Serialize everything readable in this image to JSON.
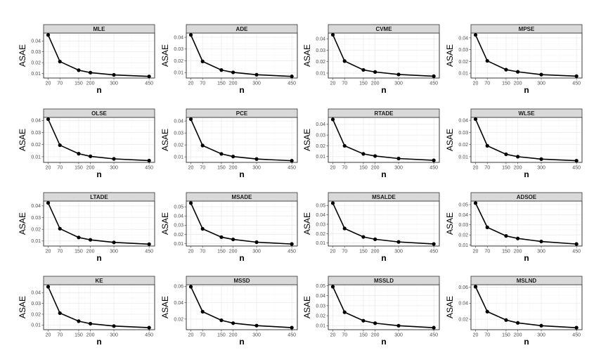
{
  "chart_data": [
    {
      "type": "line",
      "title": "MLE",
      "xlabel": "n",
      "ylabel": "ASAE",
      "x": [
        20,
        70,
        150,
        200,
        300,
        450
      ],
      "y": [
        0.0455,
        0.021,
        0.013,
        0.0108,
        0.0087,
        0.0073
      ],
      "yticks": [
        0.01,
        0.02,
        0.03,
        0.04
      ],
      "ylim": [
        0.0058,
        0.0473
      ]
    },
    {
      "type": "line",
      "title": "ADE",
      "xlabel": "n",
      "ylabel": "ASAE",
      "x": [
        20,
        70,
        150,
        200,
        300,
        450
      ],
      "y": [
        0.042,
        0.0195,
        0.0122,
        0.0102,
        0.0082,
        0.0068
      ],
      "yticks": [
        0.01,
        0.02,
        0.03,
        0.04
      ],
      "ylim": [
        0.0054,
        0.0436
      ]
    },
    {
      "type": "line",
      "title": "CVME",
      "xlabel": "n",
      "ylabel": "ASAE",
      "x": [
        20,
        70,
        150,
        200,
        300,
        450
      ],
      "y": [
        0.0435,
        0.0205,
        0.0128,
        0.011,
        0.0088,
        0.0073
      ],
      "yticks": [
        0.01,
        0.02,
        0.03,
        0.04
      ],
      "ylim": [
        0.0057,
        0.045
      ]
    },
    {
      "type": "line",
      "title": "MPSE",
      "xlabel": "n",
      "ylabel": "ASAE",
      "x": [
        20,
        70,
        150,
        200,
        300,
        450
      ],
      "y": [
        0.0425,
        0.0205,
        0.013,
        0.0112,
        0.0088,
        0.0075
      ],
      "yticks": [
        0.01,
        0.02,
        0.03,
        0.04
      ],
      "ylim": [
        0.0059,
        0.0441
      ]
    },
    {
      "type": "line",
      "title": "OLSE",
      "xlabel": "n",
      "ylabel": "ASAE",
      "x": [
        20,
        70,
        150,
        200,
        300,
        450
      ],
      "y": [
        0.041,
        0.0195,
        0.0125,
        0.0103,
        0.0082,
        0.0068
      ],
      "yticks": [
        0.01,
        0.02,
        0.03,
        0.04
      ],
      "ylim": [
        0.0053,
        0.0425
      ]
    },
    {
      "type": "line",
      "title": "PCE",
      "xlabel": "n",
      "ylabel": "ASAE",
      "x": [
        20,
        70,
        150,
        200,
        300,
        450
      ],
      "y": [
        0.0415,
        0.0195,
        0.0125,
        0.0103,
        0.0082,
        0.0068
      ],
      "yticks": [
        0.01,
        0.02,
        0.03,
        0.04
      ],
      "ylim": [
        0.0054,
        0.043
      ]
    },
    {
      "type": "line",
      "title": "RTADE",
      "xlabel": "n",
      "ylabel": "ASAE",
      "x": [
        20,
        70,
        150,
        200,
        300,
        450
      ],
      "y": [
        0.0445,
        0.02,
        0.0125,
        0.0105,
        0.0082,
        0.0065
      ],
      "yticks": [
        0.01,
        0.02,
        0.03,
        0.04
      ],
      "ylim": [
        0.0046,
        0.0464
      ]
    },
    {
      "type": "line",
      "title": "WLSE",
      "xlabel": "n",
      "ylabel": "ASAE",
      "x": [
        20,
        70,
        150,
        200,
        300,
        450
      ],
      "y": [
        0.041,
        0.019,
        0.012,
        0.01,
        0.008,
        0.0067
      ],
      "yticks": [
        0.01,
        0.02,
        0.03,
        0.04
      ],
      "ylim": [
        0.0053,
        0.0424
      ]
    },
    {
      "type": "line",
      "title": "LTADE",
      "xlabel": "n",
      "ylabel": "ASAE",
      "x": [
        20,
        70,
        150,
        200,
        300,
        450
      ],
      "y": [
        0.0425,
        0.0205,
        0.013,
        0.011,
        0.0088,
        0.0073
      ],
      "yticks": [
        0.01,
        0.02,
        0.03,
        0.04
      ],
      "ylim": [
        0.0057,
        0.0441
      ]
    },
    {
      "type": "line",
      "title": "MSADE",
      "xlabel": "n",
      "ylabel": "ASAE",
      "x": [
        20,
        70,
        150,
        200,
        300,
        450
      ],
      "y": [
        0.054,
        0.026,
        0.017,
        0.0145,
        0.0115,
        0.0095
      ],
      "yticks": [
        0.01,
        0.02,
        0.03,
        0.04,
        0.05
      ],
      "ylim": [
        0.0073,
        0.0562
      ]
    },
    {
      "type": "line",
      "title": "MSALDE",
      "xlabel": "n",
      "ylabel": "ASAE",
      "x": [
        20,
        70,
        150,
        200,
        300,
        450
      ],
      "y": [
        0.0525,
        0.0255,
        0.0165,
        0.014,
        0.0112,
        0.009
      ],
      "yticks": [
        0.01,
        0.02,
        0.03,
        0.04,
        0.05
      ],
      "ylim": [
        0.0068,
        0.0547
      ]
    },
    {
      "type": "line",
      "title": "ADSOE",
      "xlabel": "n",
      "ylabel": "ASAE",
      "x": [
        20,
        70,
        150,
        200,
        300,
        450
      ],
      "y": [
        0.0515,
        0.0275,
        0.019,
        0.0165,
        0.0135,
        0.011
      ],
      "yticks": [
        0.01,
        0.02,
        0.03,
        0.04,
        0.05
      ],
      "ylim": [
        0.009,
        0.0535
      ]
    },
    {
      "type": "line",
      "title": "KE",
      "xlabel": "n",
      "ylabel": "ASAE",
      "x": [
        20,
        70,
        150,
        200,
        300,
        450
      ],
      "y": [
        0.0455,
        0.021,
        0.0135,
        0.0112,
        0.009,
        0.0075
      ],
      "yticks": [
        0.01,
        0.02,
        0.03,
        0.04
      ],
      "ylim": [
        0.0056,
        0.0474
      ]
    },
    {
      "type": "line",
      "title": "MSSD",
      "xlabel": "n",
      "ylabel": "ASAE",
      "x": [
        20,
        70,
        150,
        200,
        300,
        450
      ],
      "y": [
        0.0595,
        0.029,
        0.0185,
        0.015,
        0.012,
        0.0095
      ],
      "yticks": [
        0.02,
        0.04,
        0.06
      ],
      "ylim": [
        0.007,
        0.062
      ]
    },
    {
      "type": "line",
      "title": "MSSLD",
      "xlabel": "n",
      "ylabel": "ASAE",
      "x": [
        20,
        70,
        150,
        200,
        300,
        450
      ],
      "y": [
        0.049,
        0.0235,
        0.015,
        0.0125,
        0.01,
        0.008
      ],
      "yticks": [
        0.01,
        0.02,
        0.03,
        0.04,
        0.05
      ],
      "ylim": [
        0.006,
        0.051
      ]
    },
    {
      "type": "line",
      "title": "MSLND",
      "xlabel": "n",
      "ylabel": "ASAE",
      "x": [
        20,
        70,
        150,
        200,
        300,
        450
      ],
      "y": [
        0.0605,
        0.0295,
        0.019,
        0.0155,
        0.012,
        0.0095
      ],
      "yticks": [
        0.02,
        0.04,
        0.06
      ],
      "ylim": [
        0.007,
        0.063
      ]
    }
  ],
  "shared": {
    "xticks": [
      20,
      70,
      150,
      200,
      300,
      450
    ],
    "xlim": [
      0.5,
      473.5
    ]
  }
}
